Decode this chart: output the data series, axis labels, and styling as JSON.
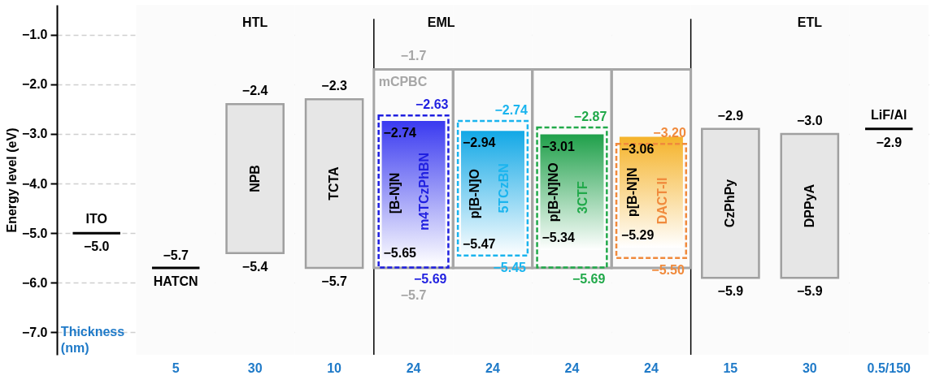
{
  "chart_data": {
    "type": "bar",
    "ylabel": "Energy level (eV)",
    "xlabel": "Thickness (nm)",
    "categories": [
      null,
      "5",
      "30",
      "10",
      "24",
      "24",
      "24",
      "24",
      "15",
      "30",
      "0.5/150"
    ],
    "ylim": [
      -7.45,
      -0.4
    ],
    "yticks": [
      {
        "value": -1,
        "label": "−1.0"
      },
      {
        "value": -2,
        "label": "−2.0"
      },
      {
        "value": -3,
        "label": "−3.0"
      },
      {
        "value": -4,
        "label": "−4.0"
      },
      {
        "value": -5,
        "label": "−5.0"
      },
      {
        "value": -6,
        "label": "−6.0"
      },
      {
        "value": -7,
        "label": "−7.0"
      }
    ],
    "grid": "y",
    "series": [
      {
        "name": "mCPBC",
        "color": "#a6a6a6",
        "base": [
          null,
          null,
          null,
          null,
          -5.7,
          -5.7,
          -5.7,
          -5.7,
          null,
          null,
          null
        ],
        "values": [
          null,
          null,
          null,
          null,
          4.0,
          4.0,
          4.0,
          4.0,
          null,
          null,
          null
        ],
        "value_labels": [
          null,
          null,
          null,
          null,
          [
            "−1.7",
            "−5.7"
          ],
          null,
          null,
          null,
          null,
          null,
          null
        ]
      },
      {
        "name": "[B-N]N",
        "color": "#3a3af0",
        "base": [
          null,
          null,
          null,
          null,
          -5.65,
          null,
          null,
          null,
          null,
          null,
          null
        ],
        "values": [
          null,
          null,
          null,
          null,
          2.91,
          null,
          null,
          null,
          null,
          null,
          null
        ],
        "value_labels": [
          null,
          null,
          null,
          null,
          [
            "−2.74",
            "−5.65"
          ],
          null,
          null,
          null,
          null,
          null,
          null
        ]
      },
      {
        "name": "p[B-N]O",
        "color": "#12a8e6",
        "base": [
          null,
          null,
          null,
          null,
          null,
          -5.47,
          null,
          null,
          null,
          null,
          null
        ],
        "values": [
          null,
          null,
          null,
          null,
          null,
          2.53,
          null,
          null,
          null,
          null,
          null
        ],
        "value_labels": [
          null,
          null,
          null,
          null,
          null,
          [
            "−2.94",
            "−5.47"
          ],
          null,
          null,
          null,
          null,
          null
        ]
      },
      {
        "name": "p[B-N]NO",
        "color": "#1fa04a",
        "base": [
          null,
          null,
          null,
          null,
          null,
          null,
          -5.34,
          null,
          null,
          null,
          null
        ],
        "values": [
          null,
          null,
          null,
          null,
          null,
          null,
          2.33,
          null,
          null,
          null,
          null
        ],
        "value_labels": [
          null,
          null,
          null,
          null,
          null,
          null,
          [
            "−3.01",
            "−5.34"
          ],
          null,
          null,
          null,
          null
        ]
      },
      {
        "name": "p[B-N]N",
        "color": "#f5b32a",
        "base": [
          null,
          null,
          null,
          null,
          null,
          null,
          null,
          -5.29,
          null,
          null,
          null
        ],
        "values": [
          null,
          null,
          null,
          null,
          null,
          null,
          null,
          2.23,
          null,
          null,
          null
        ],
        "value_labels": [
          null,
          null,
          null,
          null,
          null,
          null,
          null,
          [
            "−3.06",
            "−5.29"
          ],
          null,
          null,
          null
        ]
      },
      {
        "name": "m4TCzPhBN",
        "color": "#1f1fe0",
        "line_style": "dashed",
        "base": [
          null,
          null,
          null,
          null,
          -5.69,
          null,
          null,
          null,
          null,
          null,
          null
        ],
        "values": [
          null,
          null,
          null,
          null,
          3.06,
          null,
          null,
          null,
          null,
          null,
          null
        ],
        "value_labels": [
          null,
          null,
          null,
          null,
          [
            "−2.63",
            "−5.69"
          ],
          null,
          null,
          null,
          null,
          null,
          null
        ]
      },
      {
        "name": "5TCzBN",
        "color": "#1ab4ee",
        "line_style": "dashed",
        "base": [
          null,
          null,
          null,
          null,
          null,
          -5.45,
          null,
          null,
          null,
          null,
          null
        ],
        "values": [
          null,
          null,
          null,
          null,
          null,
          2.71,
          null,
          null,
          null,
          null,
          null
        ],
        "value_labels": [
          null,
          null,
          null,
          null,
          null,
          [
            "−2.74",
            "−5.45"
          ],
          null,
          null,
          null,
          null,
          null
        ]
      },
      {
        "name": "3CTF",
        "color": "#21a94a",
        "line_style": "dashed",
        "base": [
          null,
          null,
          null,
          null,
          null,
          null,
          -5.69,
          null,
          null,
          null,
          null
        ],
        "values": [
          null,
          null,
          null,
          null,
          null,
          null,
          2.82,
          null,
          null,
          null,
          null
        ],
        "value_labels": [
          null,
          null,
          null,
          null,
          null,
          null,
          [
            "−2.87",
            "−5.69"
          ],
          null,
          null,
          null,
          null
        ]
      },
      {
        "name": "DACT-II",
        "color": "#f08a3c",
        "line_style": "dashed",
        "base": [
          null,
          null,
          null,
          null,
          null,
          null,
          null,
          -5.5,
          null,
          null,
          null
        ],
        "values": [
          null,
          null,
          null,
          null,
          null,
          null,
          null,
          2.3,
          null,
          null,
          null
        ],
        "value_labels": [
          null,
          null,
          null,
          null,
          null,
          null,
          null,
          [
            "−3.20",
            "−5.50"
          ],
          null,
          null,
          null
        ]
      },
      {
        "name": "NPB",
        "color": "#e6e6e6",
        "base": [
          null,
          null,
          -5.4,
          null,
          null,
          null,
          null,
          null,
          null,
          null,
          null
        ],
        "values": [
          null,
          null,
          3.0,
          null,
          null,
          null,
          null,
          null,
          null,
          null,
          null
        ],
        "value_labels": [
          null,
          null,
          [
            "−2.4",
            "−5.4"
          ],
          null,
          null,
          null,
          null,
          null,
          null,
          null,
          null
        ]
      },
      {
        "name": "TCTA",
        "color": "#e6e6e6",
        "base": [
          null,
          null,
          null,
          -5.7,
          null,
          null,
          null,
          null,
          null,
          null,
          null
        ],
        "values": [
          null,
          null,
          null,
          3.4,
          null,
          null,
          null,
          null,
          null,
          null,
          null
        ],
        "value_labels": [
          null,
          null,
          null,
          [
            "−2.3",
            "−5.7"
          ],
          null,
          null,
          null,
          null,
          null,
          null,
          null
        ]
      },
      {
        "name": "CzPhPy",
        "color": "#e6e6e6",
        "base": [
          null,
          null,
          null,
          null,
          null,
          null,
          null,
          null,
          -5.9,
          null,
          null
        ],
        "values": [
          null,
          null,
          null,
          null,
          null,
          null,
          null,
          null,
          3.0,
          null,
          null
        ],
        "value_labels": [
          null,
          null,
          null,
          null,
          null,
          null,
          null,
          null,
          [
            "−2.9",
            "−5.9"
          ],
          null,
          null
        ]
      },
      {
        "name": "DPPyA",
        "color": "#e6e6e6",
        "base": [
          null,
          null,
          null,
          null,
          null,
          null,
          null,
          null,
          null,
          -5.9,
          null
        ],
        "values": [
          null,
          null,
          null,
          null,
          null,
          null,
          null,
          null,
          null,
          2.9,
          null
        ],
        "value_labels": [
          null,
          null,
          null,
          null,
          null,
          null,
          null,
          null,
          null,
          [
            "−3.0",
            "−5.9"
          ],
          null
        ]
      },
      {
        "name": "ITO",
        "color": "#000000",
        "base": [
          -5.0,
          null,
          null,
          null,
          null,
          null,
          null,
          null,
          null,
          null,
          null
        ],
        "values": [
          0,
          null,
          null,
          null,
          null,
          null,
          null,
          null,
          null,
          null,
          null
        ],
        "value_labels": [
          [
            null,
            "−5.0"
          ],
          null,
          null,
          null,
          null,
          null,
          null,
          null,
          null,
          null,
          null
        ]
      },
      {
        "name": "HATCN",
        "color": "#000000",
        "base": [
          null,
          -5.7,
          null,
          null,
          null,
          null,
          null,
          null,
          null,
          null,
          null
        ],
        "values": [
          null,
          0,
          null,
          null,
          null,
          null,
          null,
          null,
          null,
          null,
          null
        ],
        "value_labels": [
          null,
          [
            "−5.7",
            null
          ],
          null,
          null,
          null,
          null,
          null,
          null,
          null,
          null,
          null
        ]
      },
      {
        "name": "LiF/Al",
        "color": "#000000",
        "base": [
          null,
          null,
          null,
          null,
          null,
          null,
          null,
          null,
          null,
          null,
          -2.9
        ],
        "values": [
          null,
          null,
          null,
          null,
          null,
          null,
          null,
          null,
          null,
          null,
          0
        ],
        "value_labels": [
          null,
          null,
          null,
          null,
          null,
          null,
          null,
          null,
          null,
          null,
          [
            null,
            "−2.9"
          ]
        ]
      }
    ],
    "bands": [
      {
        "axis": "x",
        "from": "5",
        "to": "10",
        "label": "HTL",
        "color": "#fbfbfb"
      },
      {
        "axis": "x",
        "from": "24",
        "to": "24",
        "label": "EML",
        "color": "#fbfbfb"
      },
      {
        "axis": "x",
        "from": "15",
        "to": "0.5/150",
        "label": "ETL",
        "color": "#fbfbfb"
      }
    ]
  }
}
